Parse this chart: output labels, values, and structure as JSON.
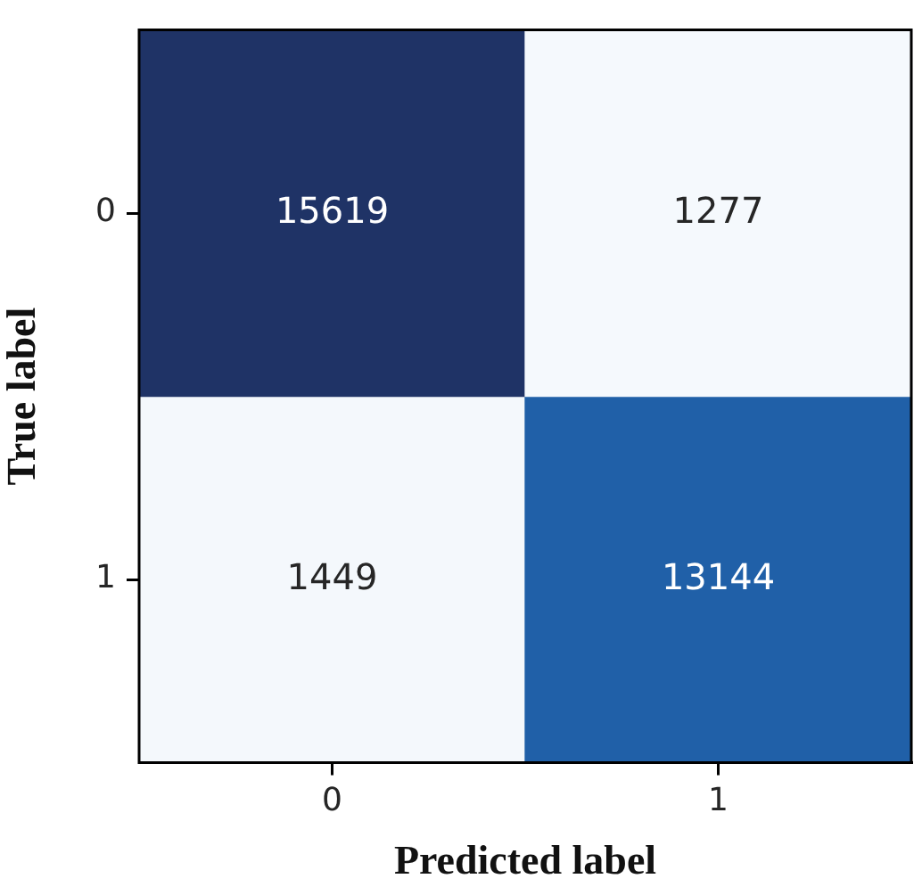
{
  "chart_data": {
    "type": "heatmap",
    "xlabel": "Predicted label",
    "ylabel": "True label",
    "categories": [
      "0",
      "1"
    ],
    "y_categories": [
      "0",
      "1"
    ],
    "cells": [
      [
        15619,
        1277
      ],
      [
        1449,
        13144
      ]
    ],
    "colors": [
      "#1f3366",
      "#f5f9fd",
      "#f4f8fc",
      "#2060a8"
    ],
    "data_labels": true
  }
}
